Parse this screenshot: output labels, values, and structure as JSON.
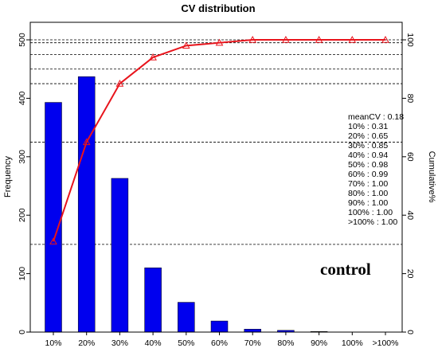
{
  "chart_data": {
    "type": "bar",
    "title": "CV distribution",
    "xlabel": "",
    "ylabel": "Frequency",
    "y2label": "Cumulative%",
    "categories": [
      "10%",
      "20%",
      "30%",
      "40%",
      "50%",
      "60%",
      "70%",
      "80%",
      "90%",
      "100%",
      ">100%"
    ],
    "series": [
      {
        "values": [
          393,
          437,
          263,
          110,
          51,
          19,
          5,
          3,
          1,
          0,
          0
        ]
      }
    ],
    "line": {
      "values": [
        31,
        65,
        85,
        94,
        98,
        99,
        100,
        100,
        100,
        100,
        100
      ],
      "color": "#e8141c"
    },
    "ylim": [
      0,
      530
    ],
    "y2lim": [
      0,
      106
    ],
    "yticks": [
      0,
      100,
      200,
      300,
      400,
      500
    ],
    "y2ticks": [
      0,
      20,
      40,
      60,
      80,
      100
    ],
    "bar_color": "#0000ee",
    "hlines_cumulative": [
      30,
      65,
      85,
      90,
      95,
      99,
      100
    ],
    "annotations": [
      "meanCV : 0.18",
      "10% : 0.31",
      "20% : 0.65",
      "30% : 0.85",
      "40% : 0.94",
      "50% : 0.98",
      "60% : 0.99",
      "70% : 1.00",
      "80% : 1.00",
      "90% : 1.00",
      "100% : 1.00",
      ">100% : 1.00"
    ],
    "sample_label": "control",
    "grid": false,
    "legend": "none"
  }
}
